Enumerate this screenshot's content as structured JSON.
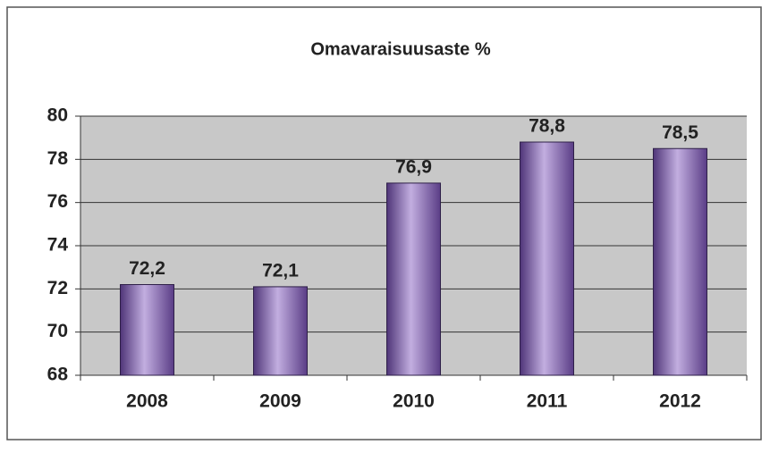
{
  "chart_data": {
    "type": "bar",
    "title": "Omavaraisuusaste %",
    "categories": [
      "2008",
      "2009",
      "2010",
      "2011",
      "2012"
    ],
    "values": [
      72.2,
      72.1,
      76.9,
      78.8,
      78.5
    ],
    "value_labels": [
      "72,2",
      "72,1",
      "76,9",
      "78,8",
      "78,5"
    ],
    "color": "#8a6bb8",
    "ylim": [
      68,
      80
    ],
    "yticks": [
      68,
      70,
      72,
      74,
      76,
      78,
      80
    ],
    "grid": true
  }
}
